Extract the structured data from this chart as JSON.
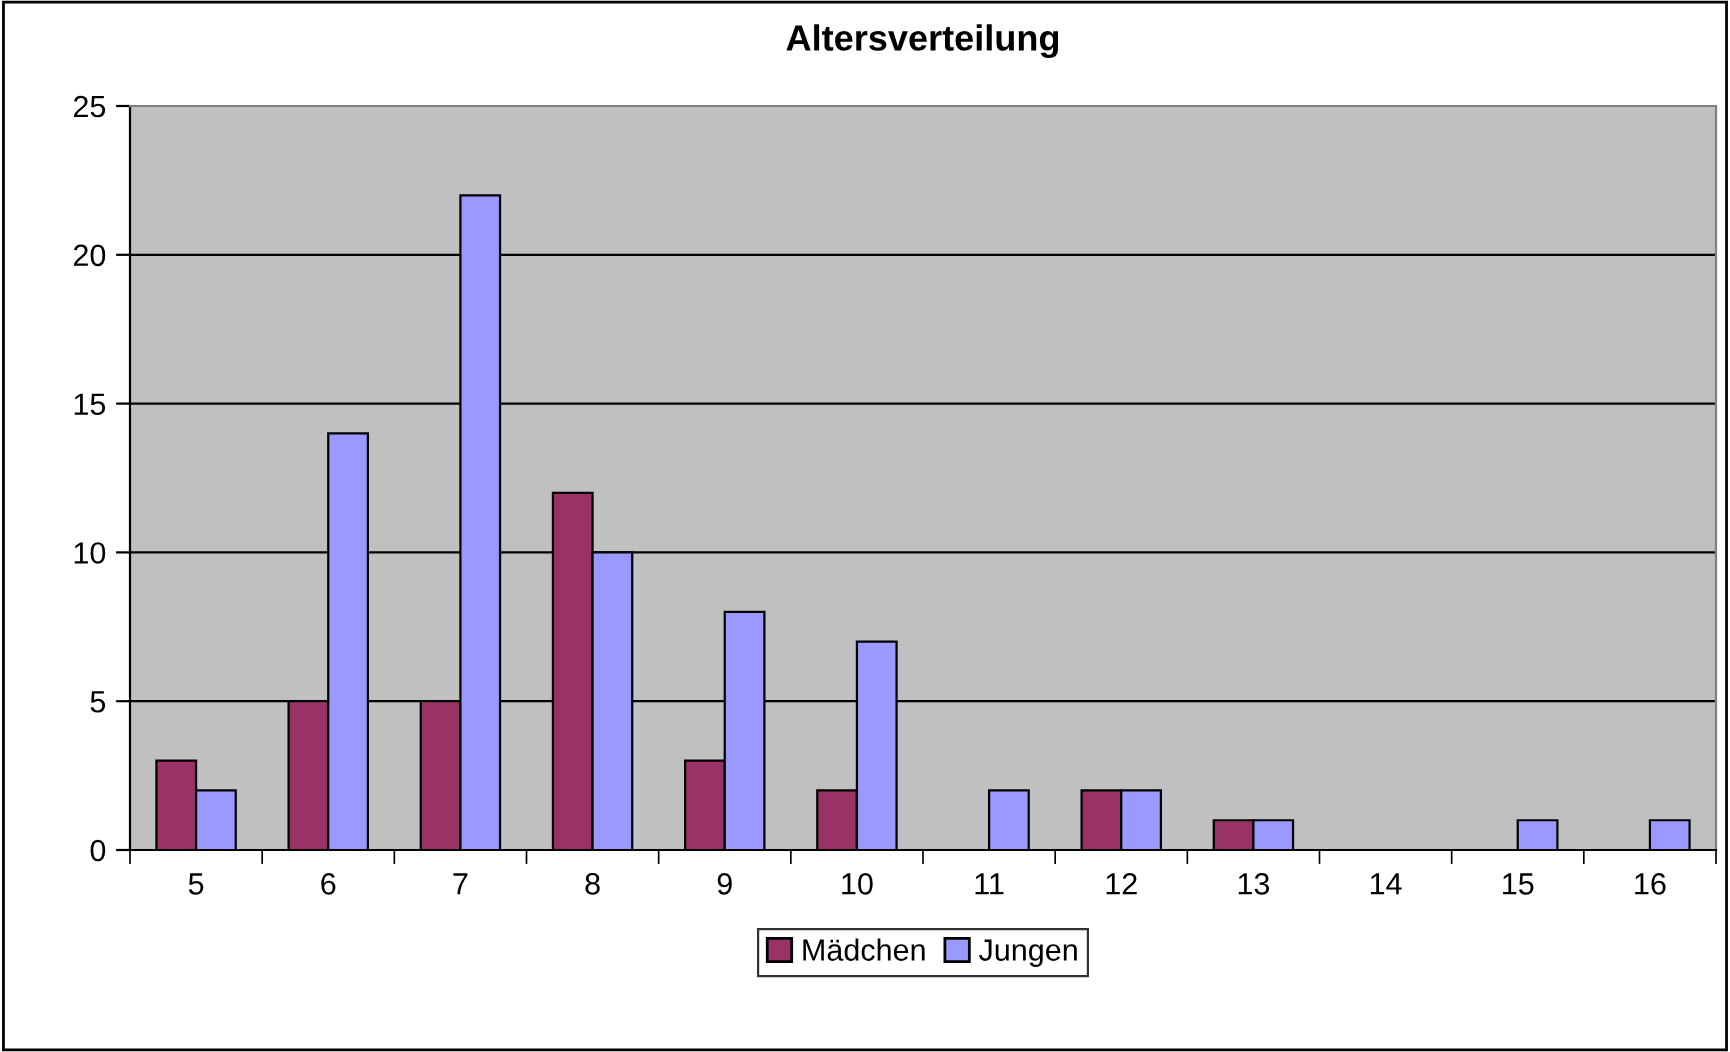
{
  "chart_data": {
    "type": "bar",
    "title": "Altersverteilung",
    "categories": [
      "5",
      "6",
      "7",
      "8",
      "9",
      "10",
      "11",
      "12",
      "13",
      "14",
      "15",
      "16"
    ],
    "series": [
      {
        "name": "Mädchen",
        "color": "#993366",
        "values": [
          3,
          5,
          5,
          12,
          3,
          2,
          0,
          2,
          1,
          0,
          0,
          0
        ]
      },
      {
        "name": "Jungen",
        "color": "#9999ff",
        "values": [
          2,
          14,
          22,
          10,
          8,
          7,
          2,
          2,
          1,
          0,
          1,
          1
        ]
      }
    ],
    "ylim": [
      0,
      25
    ],
    "yticks": [
      0,
      5,
      10,
      15,
      20,
      25
    ],
    "grid": "y",
    "legend": "bottom"
  }
}
